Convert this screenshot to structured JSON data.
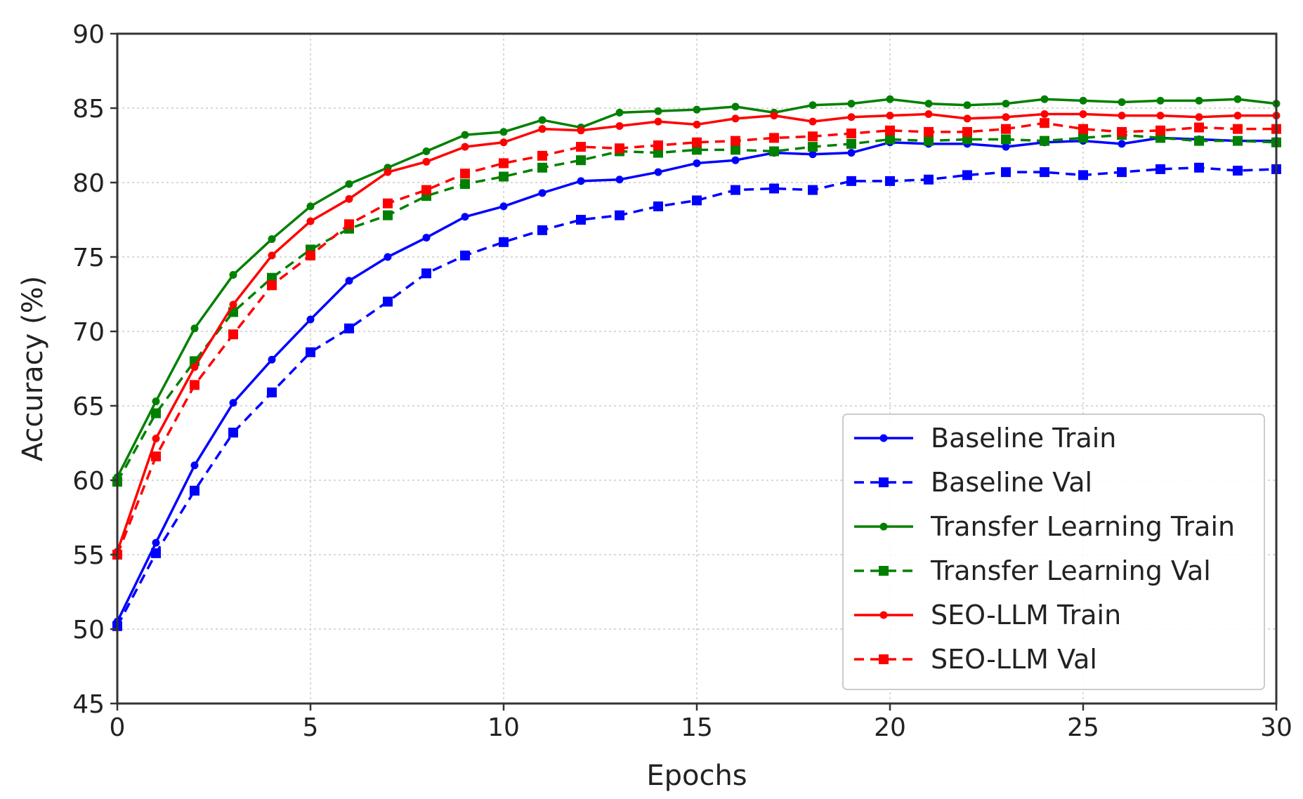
{
  "chart_data": {
    "type": "line",
    "xlabel": "Epochs",
    "ylabel": "Accuracy (%)",
    "xlim": [
      0,
      30
    ],
    "ylim": [
      45,
      90
    ],
    "xticks": [
      0,
      5,
      10,
      15,
      20,
      25,
      30
    ],
    "yticks": [
      45,
      50,
      55,
      60,
      65,
      70,
      75,
      80,
      85,
      90
    ],
    "grid": true,
    "legend_position": "lower-right",
    "x": [
      0,
      1,
      2,
      3,
      4,
      5,
      6,
      7,
      8,
      9,
      10,
      11,
      12,
      13,
      14,
      15,
      16,
      17,
      18,
      19,
      20,
      21,
      22,
      23,
      24,
      25,
      26,
      27,
      28,
      29,
      30
    ],
    "series": [
      {
        "name": "Baseline Train",
        "color": "#0000ff",
        "style": "solid",
        "marker": "circle",
        "values": [
          50.5,
          55.8,
          61.0,
          65.2,
          68.1,
          70.8,
          73.4,
          75.0,
          76.3,
          77.7,
          78.4,
          79.3,
          80.1,
          80.2,
          80.7,
          81.3,
          81.5,
          82.0,
          81.9,
          82.0,
          82.7,
          82.6,
          82.6,
          82.4,
          82.7,
          82.8,
          82.6,
          83.0,
          82.9,
          82.8,
          82.8
        ]
      },
      {
        "name": "Baseline Val",
        "color": "#0000ff",
        "style": "dashed",
        "marker": "square",
        "values": [
          50.2,
          55.1,
          59.3,
          63.2,
          65.9,
          68.6,
          70.2,
          72.0,
          73.9,
          75.1,
          76.0,
          76.8,
          77.5,
          77.8,
          78.4,
          78.8,
          79.5,
          79.6,
          79.5,
          80.1,
          80.1,
          80.2,
          80.5,
          80.7,
          80.7,
          80.5,
          80.7,
          80.9,
          81.0,
          80.8,
          80.9
        ]
      },
      {
        "name": "Transfer Learning Train",
        "color": "#008000",
        "style": "solid",
        "marker": "circle",
        "values": [
          60.2,
          65.3,
          70.2,
          73.8,
          76.2,
          78.4,
          79.9,
          81.0,
          82.1,
          83.2,
          83.4,
          84.2,
          83.7,
          84.7,
          84.8,
          84.9,
          85.1,
          84.7,
          85.2,
          85.3,
          85.6,
          85.3,
          85.2,
          85.3,
          85.6,
          85.5,
          85.4,
          85.5,
          85.5,
          85.6,
          85.3
        ]
      },
      {
        "name": "Transfer Learning Val",
        "color": "#008000",
        "style": "dashed",
        "marker": "square",
        "values": [
          59.9,
          64.5,
          68.0,
          71.3,
          73.6,
          75.5,
          76.9,
          77.8,
          79.1,
          79.9,
          80.4,
          81.0,
          81.5,
          82.1,
          82.0,
          82.2,
          82.2,
          82.1,
          82.4,
          82.6,
          82.9,
          82.8,
          82.9,
          82.9,
          82.8,
          83.0,
          83.2,
          83.0,
          82.8,
          82.8,
          82.7
        ]
      },
      {
        "name": "SEO-LLM Train",
        "color": "#ff0000",
        "style": "solid",
        "marker": "circle",
        "values": [
          55.2,
          62.8,
          67.6,
          71.8,
          75.1,
          77.4,
          78.9,
          80.7,
          81.4,
          82.4,
          82.7,
          83.6,
          83.5,
          83.8,
          84.1,
          83.9,
          84.3,
          84.5,
          84.1,
          84.4,
          84.5,
          84.6,
          84.3,
          84.4,
          84.6,
          84.6,
          84.5,
          84.5,
          84.4,
          84.5,
          84.5
        ]
      },
      {
        "name": "SEO-LLM Val",
        "color": "#ff0000",
        "style": "dashed",
        "marker": "square",
        "values": [
          55.0,
          61.6,
          66.4,
          69.8,
          73.1,
          75.1,
          77.2,
          78.6,
          79.5,
          80.6,
          81.3,
          81.8,
          82.4,
          82.3,
          82.5,
          82.7,
          82.8,
          83.0,
          83.1,
          83.3,
          83.5,
          83.4,
          83.4,
          83.6,
          84.0,
          83.6,
          83.4,
          83.5,
          83.7,
          83.6,
          83.6
        ]
      }
    ]
  }
}
